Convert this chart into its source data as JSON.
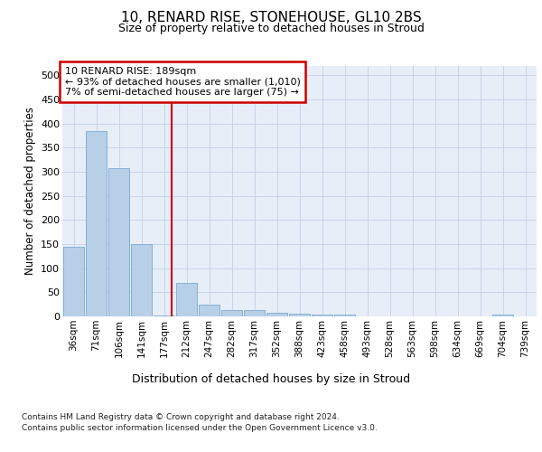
{
  "title1": "10, RENARD RISE, STONEHOUSE, GL10 2BS",
  "title2": "Size of property relative to detached houses in Stroud",
  "xlabel": "Distribution of detached houses by size in Stroud",
  "ylabel": "Number of detached properties",
  "categories": [
    "36sqm",
    "71sqm",
    "106sqm",
    "141sqm",
    "177sqm",
    "212sqm",
    "247sqm",
    "282sqm",
    "317sqm",
    "352sqm",
    "388sqm",
    "423sqm",
    "458sqm",
    "493sqm",
    "528sqm",
    "563sqm",
    "598sqm",
    "634sqm",
    "669sqm",
    "704sqm",
    "739sqm"
  ],
  "values": [
    145,
    385,
    308,
    150,
    2,
    70,
    25,
    13,
    13,
    8,
    5,
    3,
    3,
    0,
    0,
    0,
    0,
    0,
    0,
    3,
    0
  ],
  "bar_color": "#b8cfe8",
  "bar_edge_color": "#7aaad0",
  "vline_color": "#cc0000",
  "annotation_text": "10 RENARD RISE: 189sqm\n← 93% of detached houses are smaller (1,010)\n7% of semi-detached houses are larger (75) →",
  "annotation_box_color": "#cc0000",
  "grid_color": "#c8d4e8",
  "background_color": "#e8eef8",
  "footer_line1": "Contains HM Land Registry data © Crown copyright and database right 2024.",
  "footer_line2": "Contains public sector information licensed under the Open Government Licence v3.0.",
  "ylim": [
    0,
    520
  ],
  "yticks": [
    0,
    50,
    100,
    150,
    200,
    250,
    300,
    350,
    400,
    450,
    500
  ]
}
